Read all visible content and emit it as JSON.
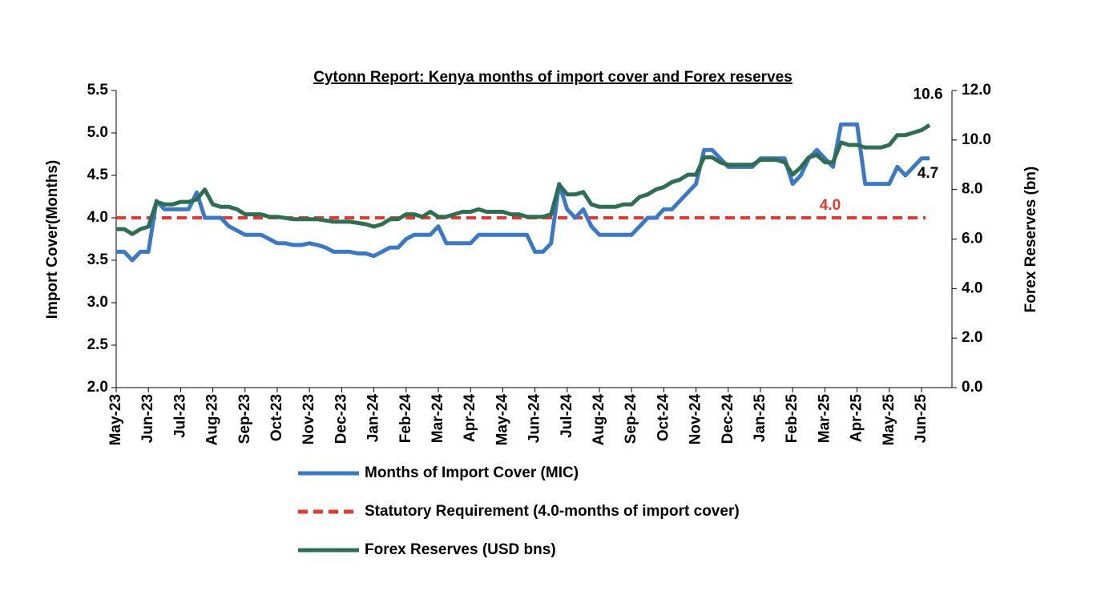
{
  "chart_data": {
    "type": "line",
    "title": "Cytonn Report: Kenya months of import cover and Forex reserves",
    "y_label": "Import Cover(Months)",
    "y2_label": "Forex Reserves (bn)",
    "categories": [
      "May-23",
      null,
      null,
      null,
      "Jun-23",
      null,
      null,
      null,
      "Jul-23",
      null,
      null,
      null,
      "Aug-23",
      null,
      null,
      null,
      "Sep-23",
      null,
      null,
      null,
      "Oct-23",
      null,
      null,
      null,
      "Nov-23",
      null,
      null,
      null,
      "Dec-23",
      null,
      null,
      null,
      "Jan-24",
      null,
      null,
      null,
      "Feb-24",
      null,
      null,
      null,
      "Mar-24",
      null,
      null,
      null,
      "Apr-24",
      null,
      null,
      null,
      "May-24",
      null,
      null,
      null,
      "Jun-24",
      null,
      null,
      null,
      "Jul-24",
      null,
      null,
      null,
      "Aug-24",
      null,
      null,
      null,
      "Sep-24",
      null,
      null,
      null,
      "Oct-24",
      null,
      null,
      null,
      "Nov-24",
      null,
      null,
      null,
      "Dec-24",
      null,
      null,
      null,
      "Jan-25",
      null,
      null,
      null,
      "Feb-25",
      null,
      null,
      null,
      "Mar-25",
      null,
      null,
      null,
      "Apr-25",
      null,
      null,
      null,
      "May-25",
      null,
      null,
      null,
      "Jun-25",
      null
    ],
    "series": [
      {
        "name": "Months of Import Cover (MIC)",
        "color": "#3a78c9",
        "axis": "y",
        "last_value_label": "4.7",
        "values": [
          3.6,
          3.6,
          3.5,
          3.6,
          3.6,
          4.2,
          4.1,
          4.1,
          4.1,
          4.1,
          4.3,
          4.0,
          4.0,
          4.0,
          3.9,
          3.85,
          3.8,
          3.8,
          3.8,
          3.75,
          3.7,
          3.7,
          3.68,
          3.68,
          3.7,
          3.68,
          3.65,
          3.6,
          3.6,
          3.6,
          3.58,
          3.58,
          3.55,
          3.6,
          3.65,
          3.65,
          3.75,
          3.8,
          3.8,
          3.8,
          3.9,
          3.7,
          3.7,
          3.7,
          3.7,
          3.8,
          3.8,
          3.8,
          3.8,
          3.8,
          3.8,
          3.8,
          3.6,
          3.6,
          3.7,
          4.4,
          4.1,
          4.0,
          4.1,
          3.9,
          3.8,
          3.8,
          3.8,
          3.8,
          3.8,
          3.9,
          4.0,
          4.0,
          4.1,
          4.1,
          4.2,
          4.3,
          4.4,
          4.8,
          4.8,
          4.7,
          4.6,
          4.6,
          4.6,
          4.6,
          4.7,
          4.7,
          4.7,
          4.7,
          4.4,
          4.5,
          4.7,
          4.8,
          4.7,
          4.6,
          5.1,
          5.1,
          5.1,
          4.4,
          4.4,
          4.4,
          4.4,
          4.6,
          4.5,
          4.6,
          4.7,
          4.7
        ]
      },
      {
        "name": "Forex Reserves (USD bns)",
        "color": "#2e6e53",
        "axis": "y2",
        "last_value_label": "10.6",
        "values": [
          6.4,
          6.4,
          6.2,
          6.4,
          6.5,
          7.5,
          7.4,
          7.4,
          7.5,
          7.5,
          7.6,
          8.0,
          7.4,
          7.3,
          7.3,
          7.2,
          7.0,
          7.0,
          7.0,
          6.9,
          6.9,
          6.85,
          6.8,
          6.8,
          6.8,
          6.8,
          6.75,
          6.7,
          6.7,
          6.7,
          6.65,
          6.6,
          6.5,
          6.6,
          6.8,
          6.8,
          7.0,
          7.0,
          6.9,
          7.1,
          6.9,
          6.9,
          7.0,
          7.1,
          7.1,
          7.2,
          7.1,
          7.1,
          7.1,
          7.0,
          7.0,
          6.9,
          6.9,
          6.9,
          7.0,
          8.2,
          7.8,
          7.8,
          7.9,
          7.4,
          7.3,
          7.3,
          7.3,
          7.4,
          7.4,
          7.7,
          7.8,
          8.0,
          8.1,
          8.3,
          8.4,
          8.6,
          8.6,
          9.3,
          9.3,
          9.1,
          9.0,
          9.0,
          9.0,
          9.0,
          9.2,
          9.2,
          9.2,
          9.1,
          8.6,
          8.9,
          9.3,
          9.4,
          9.1,
          9.1,
          9.9,
          9.8,
          9.8,
          9.7,
          9.7,
          9.7,
          9.8,
          10.2,
          10.2,
          10.3,
          10.4,
          10.6
        ]
      }
    ],
    "reference_lines": [
      {
        "name": "Statutory Requirement (4.0-months of import cover)",
        "color": "#e8372c",
        "value": 4,
        "value_label": "4.0",
        "dashed": true
      }
    ],
    "ylim": [
      2,
      5.5
    ],
    "yticks": [
      {
        "value": 2,
        "label": "2.0"
      },
      2.5,
      {
        "value": 3,
        "label": "3.0"
      },
      3.5,
      {
        "value": 4,
        "label": "4.0"
      },
      4.5,
      {
        "value": 5,
        "label": "5.0"
      },
      5.5
    ],
    "y2lim": [
      0,
      12
    ],
    "y2ticks": [
      {
        "value": 0,
        "label": "0.0"
      },
      {
        "value": 2,
        "label": "2.0"
      },
      {
        "value": 4,
        "label": "4.0"
      },
      {
        "value": 6,
        "label": "6.0"
      },
      {
        "value": 8,
        "label": "8.0"
      },
      {
        "value": 10,
        "label": "10.0"
      },
      {
        "value": 12,
        "label": "12.0"
      }
    ],
    "grid": false,
    "legend": "bottom"
  }
}
